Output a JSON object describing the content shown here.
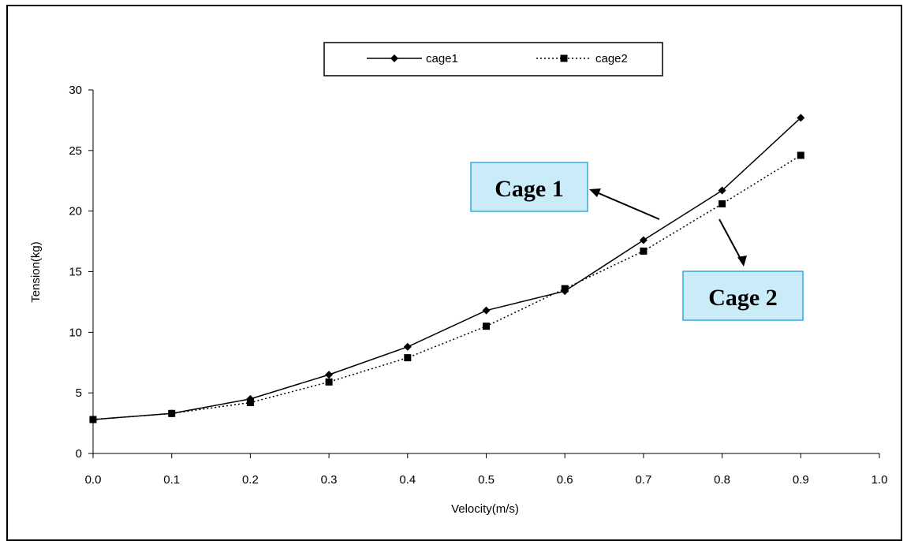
{
  "chart_data": {
    "type": "line",
    "title": "",
    "xlabel": "Velocity(m/s)",
    "ylabel": "Tension(kg)",
    "xlim": [
      0.0,
      1.0
    ],
    "ylim": [
      0,
      30
    ],
    "x_ticks": [
      "0.0",
      "0.1",
      "0.2",
      "0.3",
      "0.4",
      "0.5",
      "0.6",
      "0.7",
      "0.8",
      "0.9",
      "1.0"
    ],
    "y_ticks": [
      "0",
      "5",
      "10",
      "15",
      "20",
      "25",
      "30"
    ],
    "grid": false,
    "legend_position": "top",
    "x": [
      0.0,
      0.1,
      0.2,
      0.3,
      0.4,
      0.5,
      0.6,
      0.7,
      0.8,
      0.9
    ],
    "series": [
      {
        "name": "cage1",
        "marker": "diamond",
        "line_style": "solid",
        "color": "#000000",
        "values": [
          2.8,
          3.3,
          4.5,
          6.5,
          8.8,
          11.8,
          13.4,
          17.6,
          21.7,
          27.7
        ]
      },
      {
        "name": "cage2",
        "marker": "square",
        "line_style": "dotted",
        "color": "#000000",
        "values": [
          2.8,
          3.3,
          4.2,
          5.9,
          7.9,
          10.5,
          13.6,
          16.7,
          20.6,
          24.6
        ]
      }
    ],
    "annotations": [
      {
        "text": "Cage 1",
        "series": "cage1",
        "box_fill": "#c9ecf8",
        "box_border": "#33aadd"
      },
      {
        "text": "Cage 2",
        "series": "cage2",
        "box_fill": "#c9ecf8",
        "box_border": "#33aadd"
      }
    ]
  }
}
